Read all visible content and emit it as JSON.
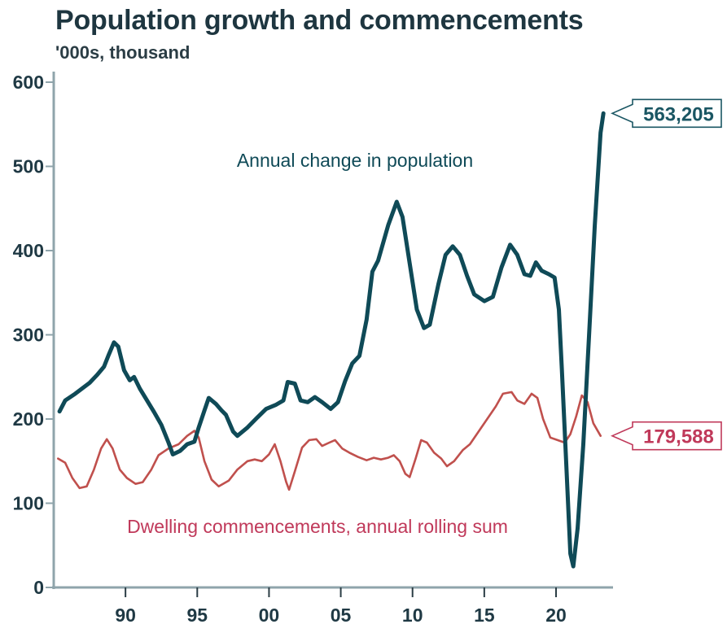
{
  "chart_data": {
    "type": "line",
    "title": "Population growth and commencements",
    "subtitle": "'000s, thousand",
    "xlabel": "",
    "ylabel": "",
    "xlim": [
      1985,
      2023.8
    ],
    "ylim": [
      0,
      600
    ],
    "grid": false,
    "y_ticks": [
      0,
      100,
      200,
      300,
      400,
      500,
      600
    ],
    "y_tick_labels": [
      "0",
      "100",
      "200",
      "300",
      "400",
      "500",
      "600"
    ],
    "x_ticks": [
      1990,
      1995,
      2000,
      2005,
      2010,
      2015,
      2020
    ],
    "x_tick_labels": [
      "90",
      "95",
      "00",
      "05",
      "10",
      "15",
      "20"
    ],
    "series": [
      {
        "name": "Annual change in population",
        "color": "#0f4a57",
        "label_position": "top-center",
        "end_value_label": "563,205",
        "x": [
          1985.4,
          1985.8,
          1986.5,
          1987.5,
          1988.0,
          1988.5,
          1988.8,
          1989.2,
          1989.5,
          1989.9,
          1990.3,
          1990.6,
          1991.0,
          1991.5,
          1992.0,
          1992.5,
          1993.0,
          1993.3,
          1993.8,
          1994.3,
          1994.8,
          1995.1,
          1995.5,
          1995.8,
          1996.3,
          1996.7,
          1997.0,
          1997.5,
          1997.8,
          1998.5,
          1999.2,
          1999.8,
          2000.5,
          2001.0,
          2001.3,
          2001.8,
          2002.2,
          2002.7,
          2003.2,
          2003.7,
          2004.3,
          2004.8,
          2005.3,
          2005.8,
          2006.3,
          2006.8,
          2007.2,
          2007.6,
          2008.3,
          2008.9,
          2009.3,
          2009.8,
          2010.3,
          2010.8,
          2011.2,
          2011.8,
          2012.3,
          2012.8,
          2013.3,
          2013.8,
          2014.3,
          2015.0,
          2015.6,
          2016.2,
          2016.8,
          2017.3,
          2017.8,
          2018.2,
          2018.6,
          2019.0,
          2019.5,
          2019.9,
          2020.2,
          2020.4,
          2020.7,
          2021.0,
          2021.2,
          2021.5,
          2021.9,
          2022.3,
          2022.7,
          2023.1,
          2023.3
        ],
        "values": [
          209,
          222,
          230,
          243,
          252,
          262,
          275,
          291,
          286,
          258,
          246,
          250,
          236,
          222,
          208,
          193,
          172,
          158,
          162,
          170,
          173,
          190,
          210,
          225,
          218,
          210,
          205,
          185,
          180,
          190,
          202,
          212,
          217,
          222,
          244,
          242,
          222,
          220,
          226,
          220,
          212,
          220,
          245,
          266,
          275,
          318,
          375,
          388,
          430,
          458,
          440,
          385,
          330,
          308,
          312,
          360,
          395,
          405,
          395,
          370,
          348,
          340,
          345,
          380,
          407,
          395,
          372,
          370,
          386,
          376,
          372,
          368,
          330,
          260,
          150,
          40,
          25,
          70,
          170,
          300,
          430,
          540,
          563
        ]
      },
      {
        "name": "Dwelling commencements, annual rolling sum",
        "color": "#c0504d",
        "label_position": "bottom-center",
        "end_value_label": "179,588",
        "x": [
          1985.3,
          1985.8,
          1986.3,
          1986.8,
          1987.3,
          1987.8,
          1988.3,
          1988.7,
          1989.1,
          1989.6,
          1990.1,
          1990.7,
          1991.2,
          1991.8,
          1992.3,
          1993.0,
          1993.7,
          1994.3,
          1994.8,
          1995.1,
          1995.5,
          1996.0,
          1996.5,
          1997.2,
          1997.8,
          1998.5,
          1999.0,
          1999.5,
          2000.0,
          2000.4,
          2000.8,
          2001.2,
          2001.4,
          2001.8,
          2002.3,
          2002.8,
          2003.3,
          2003.7,
          2004.2,
          2004.6,
          2005.1,
          2005.6,
          2006.2,
          2006.8,
          2007.3,
          2007.8,
          2008.3,
          2008.7,
          2009.1,
          2009.5,
          2009.8,
          2010.2,
          2010.6,
          2011.0,
          2011.5,
          2012.0,
          2012.4,
          2012.9,
          2013.5,
          2014.0,
          2014.6,
          2015.2,
          2015.8,
          2016.3,
          2016.9,
          2017.3,
          2017.8,
          2018.3,
          2018.7,
          2019.1,
          2019.6,
          2020.1,
          2020.6,
          2021.0,
          2021.4,
          2021.8,
          2022.2,
          2022.6,
          2023.1
        ],
        "values": [
          153,
          148,
          130,
          118,
          120,
          140,
          165,
          176,
          165,
          140,
          130,
          123,
          125,
          140,
          157,
          165,
          170,
          180,
          186,
          178,
          150,
          128,
          120,
          127,
          140,
          150,
          152,
          150,
          158,
          170,
          150,
          125,
          116,
          138,
          166,
          175,
          176,
          168,
          172,
          175,
          165,
          160,
          155,
          151,
          154,
          152,
          154,
          157,
          150,
          135,
          131,
          152,
          175,
          172,
          160,
          153,
          144,
          150,
          163,
          170,
          185,
          200,
          215,
          230,
          232,
          222,
          218,
          230,
          225,
          200,
          178,
          175,
          172,
          182,
          203,
          228,
          220,
          195,
          180
        ]
      }
    ]
  }
}
